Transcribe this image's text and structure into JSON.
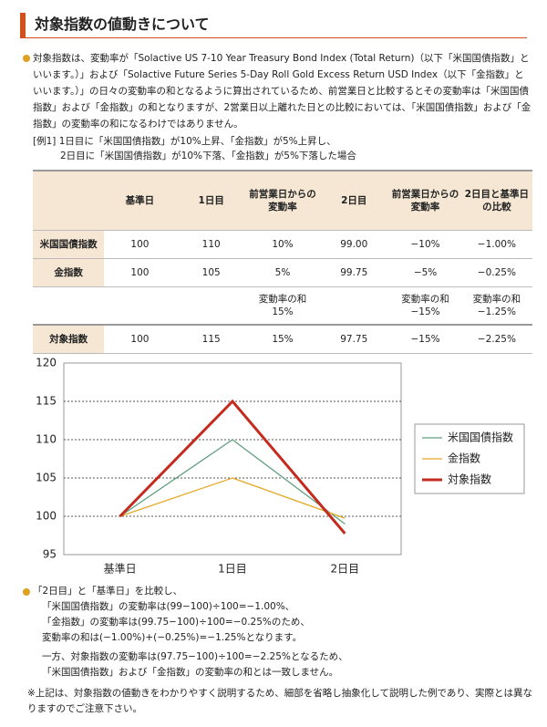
{
  "header": {
    "title": "対象指数の値動きについて"
  },
  "intro": "対象指数は、変動率が「Solactive US 7-10 Year Treasury Bond Index (Total Return)（以下「米国国債指数」といいます。）」および「Solactive Future Series 5-Day Roll Gold Excess Return USD Index（以下「金指数」といいます。）」の日々の変動率の和となるように算出されているため、前営業日と比較するとその変動率は「米国国債指数」および「金指数」の和となりますが、2営業日以上離れた日との比較においては、「米国国債指数」および「金指数」の変動率の和になるわけではありません。",
  "example": [
    "[例1] 1日目に「米国国債指数」が10%上昇、「金指数」が5%上昇し、",
    "2日目に「米国国債指数」が10%下落、「金指数」が5%下落した場合"
  ],
  "table": {
    "header": [
      null,
      "基準日",
      "1日目",
      "前営業日からの変動率",
      "2日目",
      "前営業日からの変動率",
      "2日目と基準日の比較"
    ],
    "rows": [
      [
        "米国国債指数",
        "100",
        "110",
        "10%",
        "99.00",
        "−10%",
        "−1.00%"
      ],
      [
        "金指数",
        "100",
        "105",
        "5%",
        "99.75",
        "−5%",
        "−0.25%"
      ],
      [
        null,
        null,
        null,
        "変動率の和\n15%",
        null,
        "変動率の和\n−15%",
        "変動率の和\n−1.25%"
      ],
      [
        "対象指数",
        "100",
        "115",
        "15%",
        "97.75",
        "−15%",
        "−2.25%"
      ]
    ]
  },
  "chart_data": {
    "type": "line",
    "categories": [
      "基準日",
      "1日目",
      "2日目"
    ],
    "series": [
      {
        "name": "米国国債指数",
        "color": "#5f9f80",
        "values": [
          100,
          110,
          99
        ]
      },
      {
        "name": "金指数",
        "color": "#e3a825",
        "values": [
          100,
          105,
          99.75
        ]
      },
      {
        "name": "対象指数",
        "color": "#c42a1e",
        "values": [
          100,
          115,
          97.75
        ]
      }
    ],
    "ylim": [
      95,
      120
    ],
    "yticks": [
      95,
      100,
      105,
      110,
      115,
      120
    ],
    "grid": true,
    "legend": "right"
  },
  "notes": [
    "「2日目」と「基準日」を比較し、",
    "「米国国債指数」の変動率は(99−100)÷100=−1.00%、",
    "「金指数」の変動率は(99.75−100)÷100=−0.25%のため、",
    "変動率の和は(−1.00%)+(−0.25%)=−1.25%となります。",
    "一方、対象指数の変動率は(97.75−100)÷100=−2.25%となるため、",
    "「米国国債指数」および「金指数」の変動率の和とは一致しません。"
  ],
  "footnote": "※上記は、対象指数の値動きをわかりやすく説明するため、細部を省略し抽象化して説明した例であり、実際とは異なりますのでご注意下さい。"
}
